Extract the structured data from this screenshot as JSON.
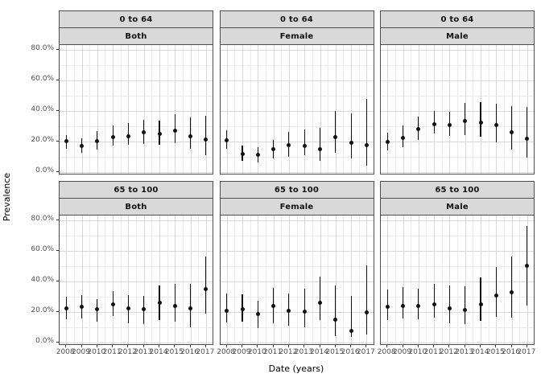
{
  "colors": {
    "background": "#ffffff",
    "strip_fill": "#d9d9d9",
    "panel_border": "#4d4d4d",
    "grid_major": "#d8d8d8",
    "grid_minor": "#ececec",
    "point": "#111111",
    "axis_text": "#4d4d4d",
    "title_text": "#000000"
  },
  "figure": {
    "y_axis_title": "Prevalence",
    "x_axis_title": "Date (years)",
    "facet_rows": [
      "0 to 64",
      "65 to 100"
    ],
    "facet_cols": [
      "Both",
      "Female",
      "Male"
    ],
    "y_ticks": [
      {
        "label": "0.0%",
        "value": 0
      },
      {
        "label": "20.0%",
        "value": 20
      },
      {
        "label": "40.0%",
        "value": 40
      },
      {
        "label": "60.0%",
        "value": 60
      },
      {
        "label": "80.0%",
        "value": 80
      }
    ]
  },
  "chart_data": [
    {
      "type": "scatter",
      "facet_row": "0 to 64",
      "facet_col": "Both",
      "xlabel": "Date (years)",
      "ylabel": "Prevalence",
      "y_units": "%",
      "ylim": [
        0,
        80
      ],
      "grid": true,
      "legend": false,
      "x": [
        2008,
        2009,
        2010,
        2011,
        2012,
        2013,
        2014,
        2015,
        2016,
        2017
      ],
      "estimate": [
        20,
        17,
        20,
        23,
        23.5,
        26,
        25,
        27,
        23.5,
        21
      ],
      "ci_low": [
        15,
        12.5,
        14.5,
        17,
        18,
        18.5,
        18,
        19,
        15,
        11
      ],
      "ci_high": [
        24,
        22,
        26.5,
        30.5,
        32,
        34,
        33.5,
        38,
        35.5,
        36.5
      ]
    },
    {
      "type": "scatter",
      "facet_row": "0 to 64",
      "facet_col": "Female",
      "xlabel": "Date (years)",
      "ylabel": "Prevalence",
      "y_units": "%",
      "ylim": [
        0,
        80
      ],
      "grid": true,
      "legend": false,
      "x": [
        2008,
        2009,
        2010,
        2011,
        2012,
        2013,
        2014,
        2015,
        2016,
        2017
      ],
      "estimate": [
        20.5,
        12,
        11,
        15,
        17.5,
        17,
        15,
        23,
        19,
        17.5
      ],
      "ci_low": [
        15,
        7,
        6,
        9,
        10,
        11,
        7.5,
        12.5,
        9,
        4
      ],
      "ci_high": [
        27.5,
        17,
        16,
        21,
        26,
        28,
        29,
        40,
        38.5,
        48
      ]
    },
    {
      "type": "scatter",
      "facet_row": "0 to 64",
      "facet_col": "Male",
      "xlabel": "Date (years)",
      "ylabel": "Prevalence",
      "y_units": "%",
      "ylim": [
        0,
        80
      ],
      "grid": true,
      "legend": false,
      "x": [
        2008,
        2009,
        2010,
        2011,
        2012,
        2013,
        2014,
        2015,
        2016,
        2017
      ],
      "estimate": [
        19.5,
        22.5,
        28,
        31,
        30.5,
        33.5,
        32.5,
        30.5,
        26,
        21.5
      ],
      "ci_low": [
        14,
        16,
        21,
        25,
        23.5,
        24,
        23,
        19.5,
        14.5,
        9.5
      ],
      "ci_high": [
        25.5,
        30.5,
        36,
        40,
        39.5,
        45,
        45.5,
        44.5,
        43,
        42.5
      ]
    },
    {
      "type": "scatter",
      "facet_row": "65 to 100",
      "facet_col": "Both",
      "xlabel": "Date (years)",
      "ylabel": "Prevalence",
      "y_units": "%",
      "ylim": [
        0,
        80
      ],
      "grid": true,
      "legend": false,
      "x": [
        2008,
        2009,
        2010,
        2011,
        2012,
        2013,
        2014,
        2015,
        2016,
        2017
      ],
      "estimate": [
        22,
        23.5,
        21.5,
        25,
        22,
        21.5,
        26,
        24,
        22,
        35
      ],
      "ci_low": [
        15,
        15.5,
        13.5,
        17.5,
        12.5,
        12,
        14.5,
        13.5,
        10,
        19
      ],
      "ci_high": [
        30,
        31,
        28.5,
        33.5,
        31,
        30.5,
        37.5,
        38.5,
        38.5,
        56
      ]
    },
    {
      "type": "scatter",
      "facet_row": "65 to 100",
      "facet_col": "Female",
      "xlabel": "Date (years)",
      "ylabel": "Prevalence",
      "y_units": "%",
      "ylim": [
        0,
        80
      ],
      "grid": true,
      "legend": false,
      "x": [
        2008,
        2009,
        2010,
        2011,
        2012,
        2013,
        2014,
        2015,
        2016,
        2017
      ],
      "estimate": [
        20.5,
        21.5,
        18.5,
        24,
        20.5,
        20,
        26,
        15,
        7.5,
        19.5
      ],
      "ci_low": [
        13,
        13.5,
        9.5,
        12.5,
        11,
        10,
        14.5,
        4,
        3.5,
        5
      ],
      "ci_high": [
        32,
        31.5,
        27.5,
        35.5,
        32,
        35,
        43,
        37,
        30.5,
        50.5
      ]
    },
    {
      "type": "scatter",
      "facet_row": "65 to 100",
      "facet_col": "Male",
      "xlabel": "Date (years)",
      "ylabel": "Prevalence",
      "y_units": "%",
      "ylim": [
        0,
        80
      ],
      "grid": true,
      "legend": false,
      "x": [
        2008,
        2009,
        2010,
        2011,
        2012,
        2013,
        2014,
        2015,
        2016,
        2017
      ],
      "estimate": [
        23.5,
        24,
        24,
        25,
        22,
        21,
        25,
        30.5,
        33,
        50
      ],
      "ci_low": [
        14.5,
        15.5,
        15,
        16,
        12.5,
        12,
        14,
        16.5,
        16,
        24
      ],
      "ci_high": [
        34.5,
        36,
        35,
        38.5,
        37,
        36.5,
        42.5,
        49.5,
        56,
        76
      ]
    }
  ]
}
